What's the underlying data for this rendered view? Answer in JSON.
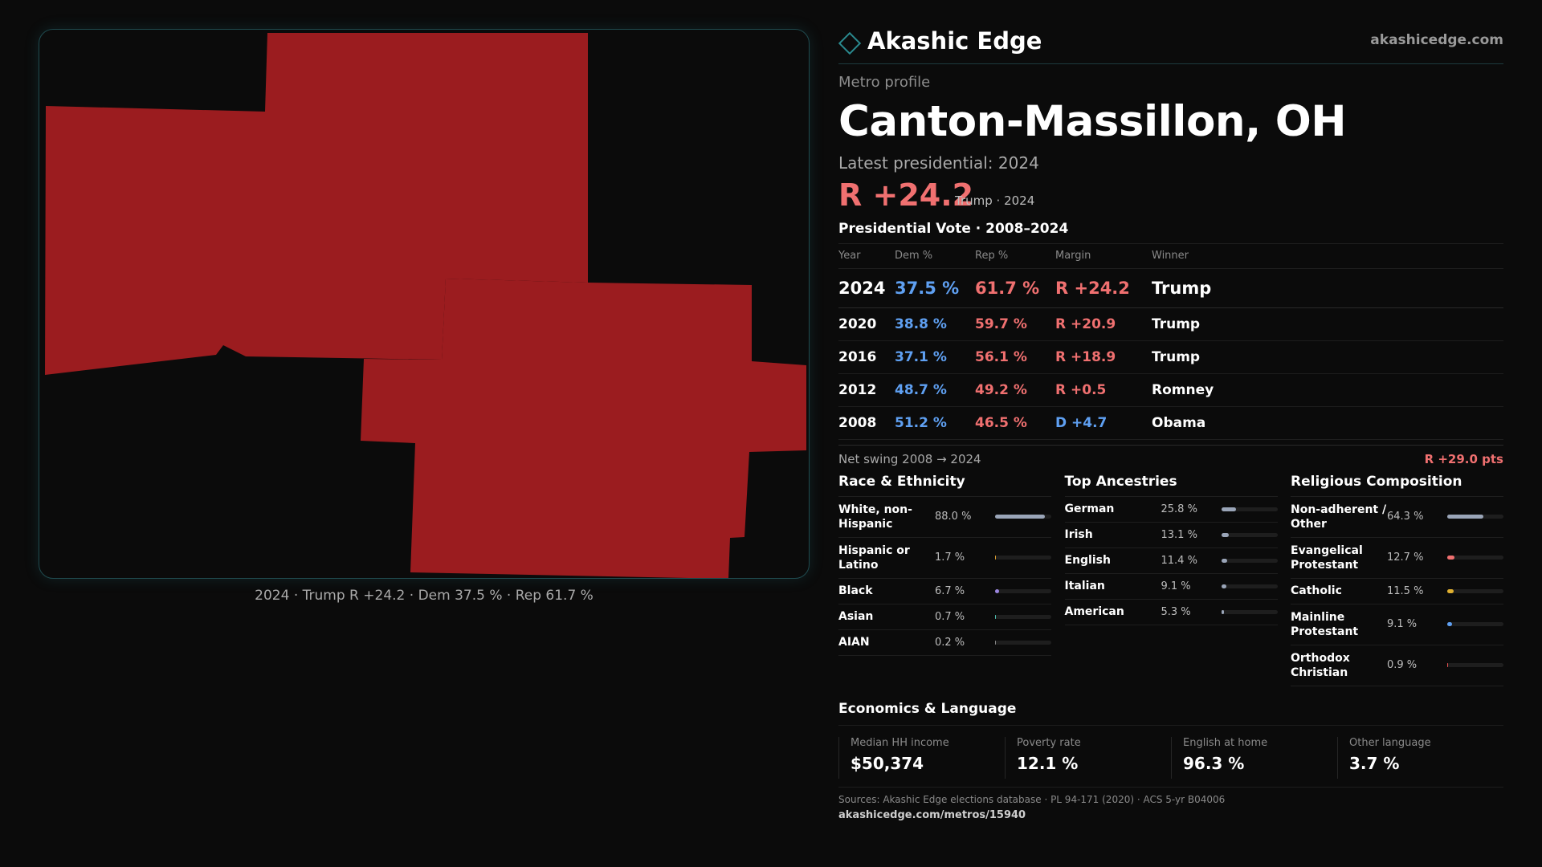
{
  "brand": {
    "name": "Akashic Edge",
    "url": "akashicedge.com"
  },
  "profile": {
    "label": "Metro profile",
    "title": "Canton-Massillon, OH",
    "latest": "Latest presidential: 2024",
    "margin": "R +24.2",
    "margin_sub": "Trump · 2024"
  },
  "map": {
    "caption": "2024 · Trump R +24.2 · Dem 37.5 % · Rep 61.7 %",
    "fill_color": "#9b1c1f"
  },
  "votes": {
    "title": "Presidential Vote · 2008–2024",
    "headers": [
      "Year",
      "Dem %",
      "Rep %",
      "Margin",
      "Winner"
    ],
    "rows": [
      {
        "year": "2024",
        "dem": "37.5 %",
        "rep": "61.7 %",
        "margin": "R +24.2",
        "party": "R",
        "winner": "Trump"
      },
      {
        "year": "2020",
        "dem": "38.8 %",
        "rep": "59.7 %",
        "margin": "R +20.9",
        "party": "R",
        "winner": "Trump"
      },
      {
        "year": "2016",
        "dem": "37.1 %",
        "rep": "56.1 %",
        "margin": "R +18.9",
        "party": "R",
        "winner": "Trump"
      },
      {
        "year": "2012",
        "dem": "48.7 %",
        "rep": "49.2 %",
        "margin": "R +0.5",
        "party": "R",
        "winner": "Romney"
      },
      {
        "year": "2008",
        "dem": "51.2 %",
        "rep": "46.5 %",
        "margin": "D +4.7",
        "party": "D",
        "winner": "Obama"
      }
    ],
    "swing_label": "Net swing 2008 → 2024",
    "swing_value": "R +29.0 pts"
  },
  "race": {
    "title": "Race & Ethnicity",
    "items": [
      {
        "label": "White, non-Hispanic",
        "value": "88.0 %",
        "pct": 88.0,
        "color": "#9aa5b8"
      },
      {
        "label": "Hispanic or Latino",
        "value": "1.7 %",
        "pct": 1.7,
        "color": "#e0a030"
      },
      {
        "label": "Black",
        "value": "6.7 %",
        "pct": 6.7,
        "color": "#9b86e0"
      },
      {
        "label": "Asian",
        "value": "0.7 %",
        "pct": 0.7,
        "color": "#4fc0b0"
      },
      {
        "label": "AIAN",
        "value": "0.2 %",
        "pct": 0.2,
        "color": "#888888"
      }
    ]
  },
  "ancestry": {
    "title": "Top Ancestries",
    "items": [
      {
        "label": "German",
        "value": "25.8 %",
        "pct": 25.8,
        "color": "#9aa5b8"
      },
      {
        "label": "Irish",
        "value": "13.1 %",
        "pct": 13.1,
        "color": "#9aa5b8"
      },
      {
        "label": "English",
        "value": "11.4 %",
        "pct": 11.4,
        "color": "#9aa5b8"
      },
      {
        "label": "Italian",
        "value": "9.1 %",
        "pct": 9.1,
        "color": "#9aa5b8"
      },
      {
        "label": "American",
        "value": "5.3 %",
        "pct": 5.3,
        "color": "#9aa5b8"
      }
    ]
  },
  "religion": {
    "title": "Religious Composition",
    "items": [
      {
        "label": "Non-adherent / Other",
        "value": "64.3 %",
        "pct": 64.3,
        "color": "#9aa5b8"
      },
      {
        "label": "Evangelical Protestant",
        "value": "12.7 %",
        "pct": 12.7,
        "color": "#f07070"
      },
      {
        "label": "Catholic",
        "value": "11.5 %",
        "pct": 11.5,
        "color": "#e0b030"
      },
      {
        "label": "Mainline Protestant",
        "value": "9.1 %",
        "pct": 9.1,
        "color": "#5fa0f2"
      },
      {
        "label": "Orthodox Christian",
        "value": "0.9 %",
        "pct": 0.9,
        "color": "#e05050"
      }
    ]
  },
  "economics": {
    "title": "Economics & Language",
    "items": [
      {
        "label": "Median HH income",
        "value": "$50,374"
      },
      {
        "label": "Poverty rate",
        "value": "12.1 %"
      },
      {
        "label": "English at home",
        "value": "96.3 %"
      },
      {
        "label": "Other language",
        "value": "3.7 %"
      }
    ]
  },
  "sources": {
    "text": "Sources: Akashic Edge elections database · PL 94-171 (2020) · ACS 5-yr B04006",
    "url": "akashicedge.com/metros/15940"
  }
}
